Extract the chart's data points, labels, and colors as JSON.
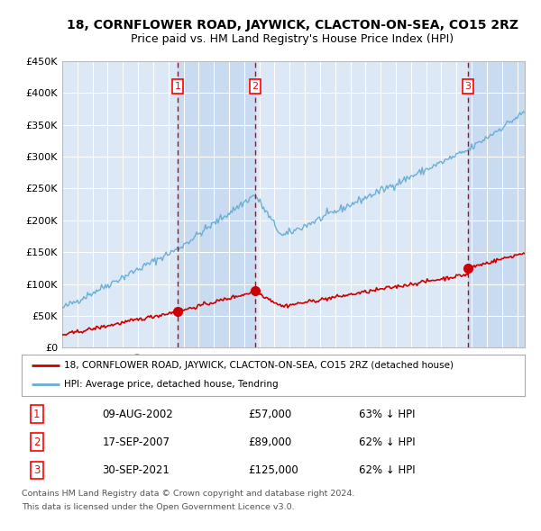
{
  "title": "18, CORNFLOWER ROAD, JAYWICK, CLACTON-ON-SEA, CO15 2RZ",
  "subtitle": "Price paid vs. HM Land Registry's House Price Index (HPI)",
  "ylim": [
    0,
    450000
  ],
  "yticks": [
    0,
    50000,
    100000,
    150000,
    200000,
    250000,
    300000,
    350000,
    400000,
    450000
  ],
  "ytick_labels": [
    "£0",
    "£50K",
    "£100K",
    "£150K",
    "£200K",
    "£250K",
    "£300K",
    "£350K",
    "£400K",
    "£450K"
  ],
  "background_color": "#ffffff",
  "plot_bg_color": "#dce8f5",
  "grid_color": "#ffffff",
  "red_line_color": "#cc0000",
  "blue_line_color": "#6baed6",
  "dashed_color": "#cc0000",
  "shade_color": "#c6d9f0",
  "transactions": [
    {
      "num": 1,
      "date_dec": 2002.61,
      "price": 57000,
      "label": "1"
    },
    {
      "num": 2,
      "date_dec": 2007.72,
      "price": 89000,
      "label": "2"
    },
    {
      "num": 3,
      "date_dec": 2021.75,
      "price": 125000,
      "label": "3"
    }
  ],
  "legend_entries": [
    "18, CORNFLOWER ROAD, JAYWICK, CLACTON-ON-SEA, CO15 2RZ (detached house)",
    "HPI: Average price, detached house, Tendring"
  ],
  "table_rows": [
    [
      "1",
      "09-AUG-2002",
      "£57,000",
      "63% ↓ HPI"
    ],
    [
      "2",
      "17-SEP-2007",
      "£89,000",
      "62% ↓ HPI"
    ],
    [
      "3",
      "30-SEP-2021",
      "£125,000",
      "62% ↓ HPI"
    ]
  ],
  "footnote1": "Contains HM Land Registry data © Crown copyright and database right 2024.",
  "footnote2": "This data is licensed under the Open Government Licence v3.0.",
  "title_fontsize": 10,
  "subtitle_fontsize": 9,
  "start_year": 1995.0,
  "end_year": 2025.5
}
